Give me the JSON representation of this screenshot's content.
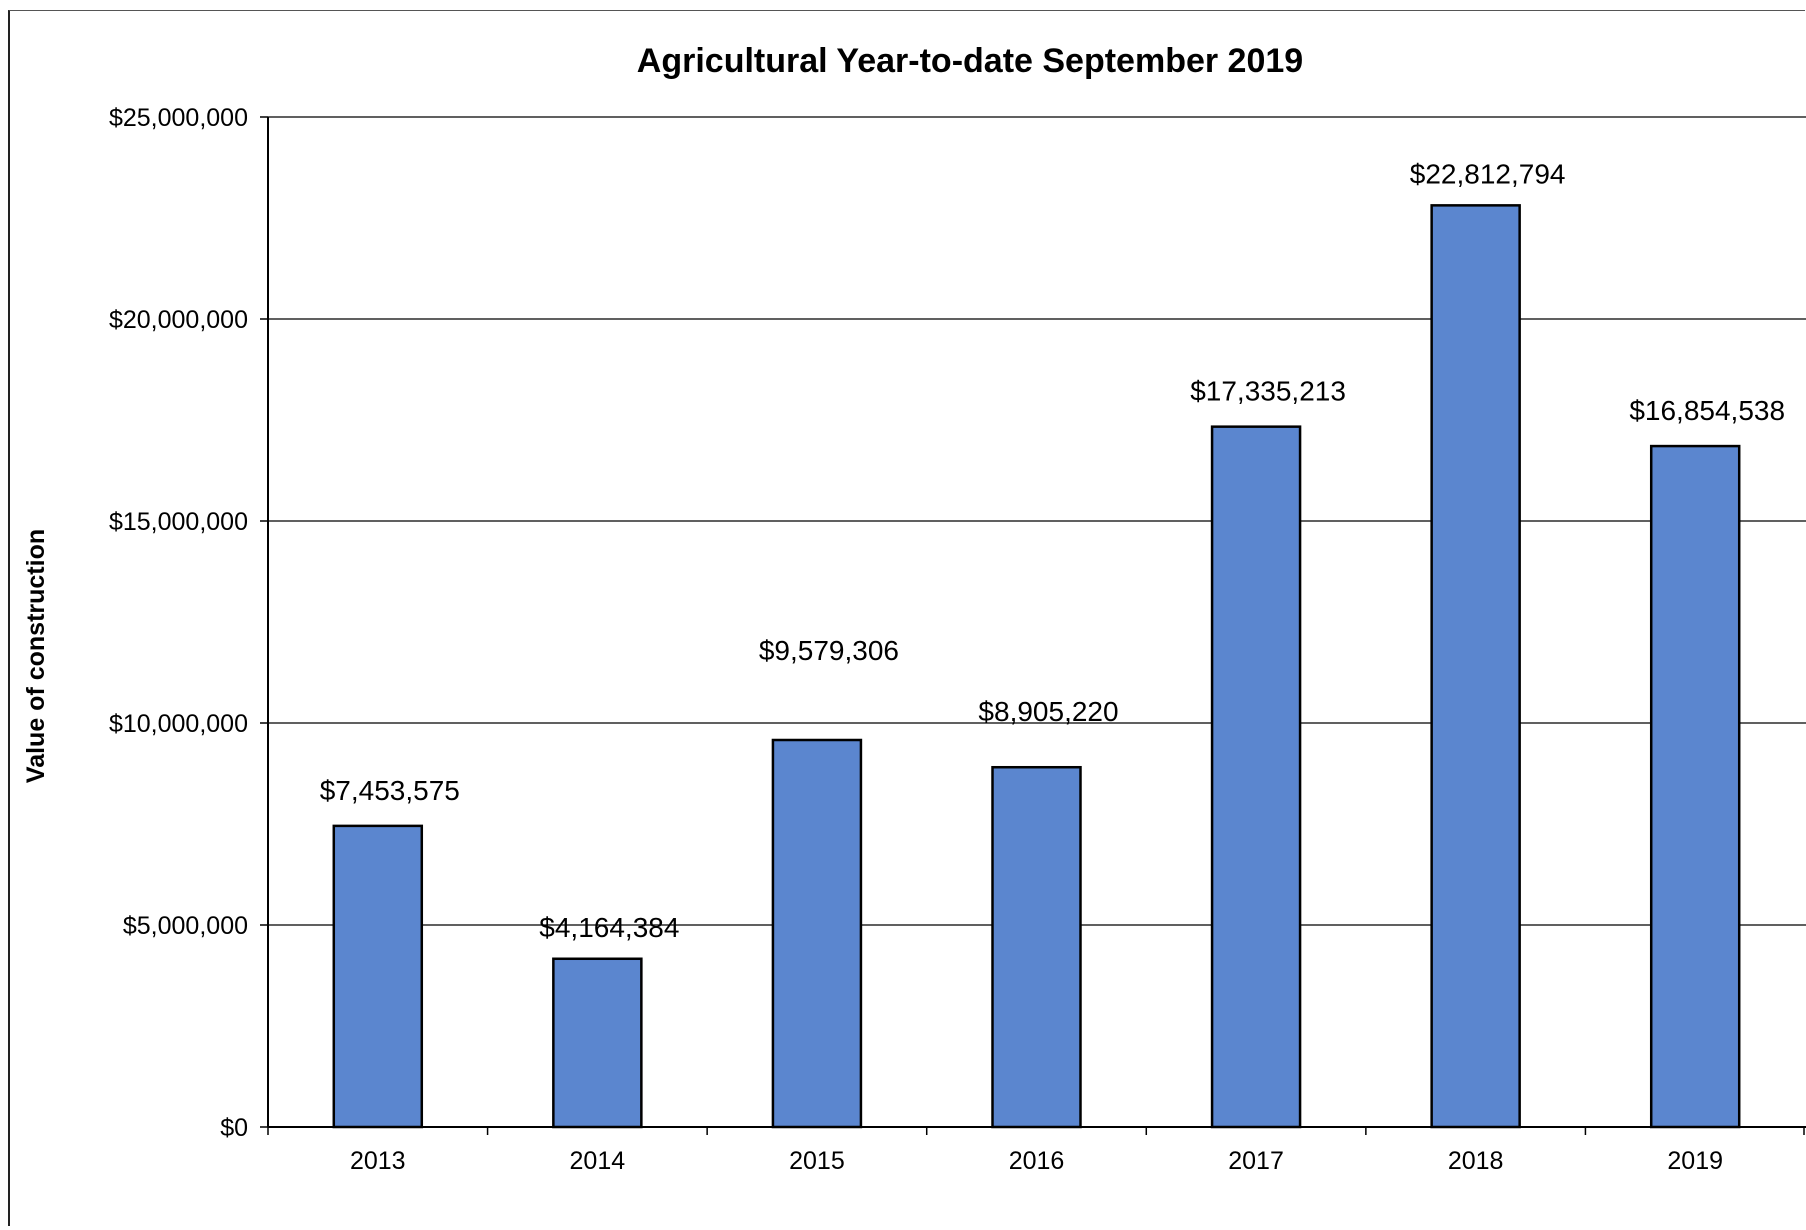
{
  "chart_data": {
    "type": "bar",
    "title": "Agricultural Year-to-date September 2019",
    "xlabel": "",
    "ylabel": "Value of construction",
    "categories": [
      "2013",
      "2014",
      "2015",
      "2016",
      "2017",
      "2018",
      "2019"
    ],
    "values": [
      7453575,
      4164384,
      9579306,
      8905220,
      17335213,
      22812794,
      16854538
    ],
    "data_labels": [
      "$7,453,575",
      "$4,164,384",
      "$9,579,306",
      "$8,905,220",
      "$17,335,213",
      "$22,812,794",
      "$16,854,538"
    ],
    "ylim": [
      0,
      25000000
    ],
    "yticks": [
      0,
      5000000,
      10000000,
      15000000,
      20000000,
      25000000
    ],
    "ytick_labels": [
      "$0",
      "$5,000,000",
      "$10,000,000",
      "$15,000,000",
      "$20,000,000",
      "$25,000,000"
    ],
    "grid": true,
    "legend": "none",
    "bar_color": "#5b86cf",
    "bar_edge_color": "#000000"
  }
}
